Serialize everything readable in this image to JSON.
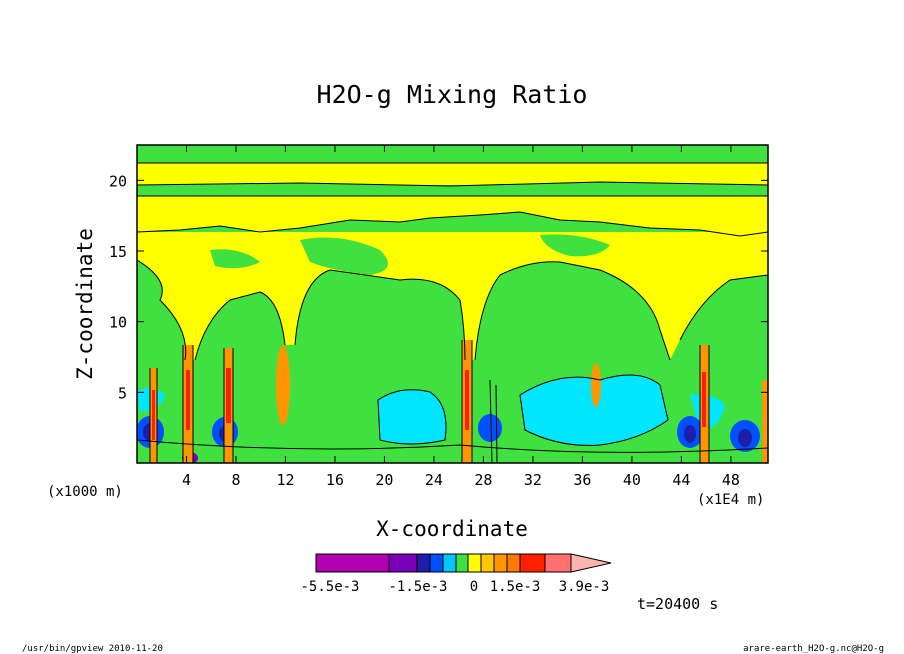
{
  "chart_data": {
    "type": "heatmap",
    "title": "H2O-g Mixing Ratio",
    "xlabel": "X-coordinate",
    "ylabel": "Z-coordinate",
    "x_units_left": "(x1000 m)",
    "x_units_right": "(x1E4 m)",
    "x_ticks": [
      "4",
      "8",
      "12",
      "16",
      "20",
      "24",
      "28",
      "32",
      "36",
      "40",
      "44",
      "48"
    ],
    "y_ticks": [
      "5",
      "10",
      "15",
      "20"
    ],
    "xlim": [
      0,
      51
    ],
    "ylim": [
      0,
      22.5
    ],
    "colorbar": {
      "labels": [
        "-5.5e-3",
        "-1.5e-3",
        "0",
        "1.5e-3",
        "3.9e-3"
      ],
      "colors": [
        "#b000b0",
        "#7a00b8",
        "#1e1ea8",
        "#0050ff",
        "#00c8ff",
        "#40e040",
        "#ffff00",
        "#ffc800",
        "#ff9600",
        "#ff7800",
        "#ff2000",
        "#ff7070",
        "#ffb4b4"
      ]
    },
    "time_label": "t=20400 s"
  },
  "footer": {
    "left": "/usr/bin/gpview  2010-11-20",
    "right": "arare-earth_H2O-g.nc@H2O-g"
  }
}
